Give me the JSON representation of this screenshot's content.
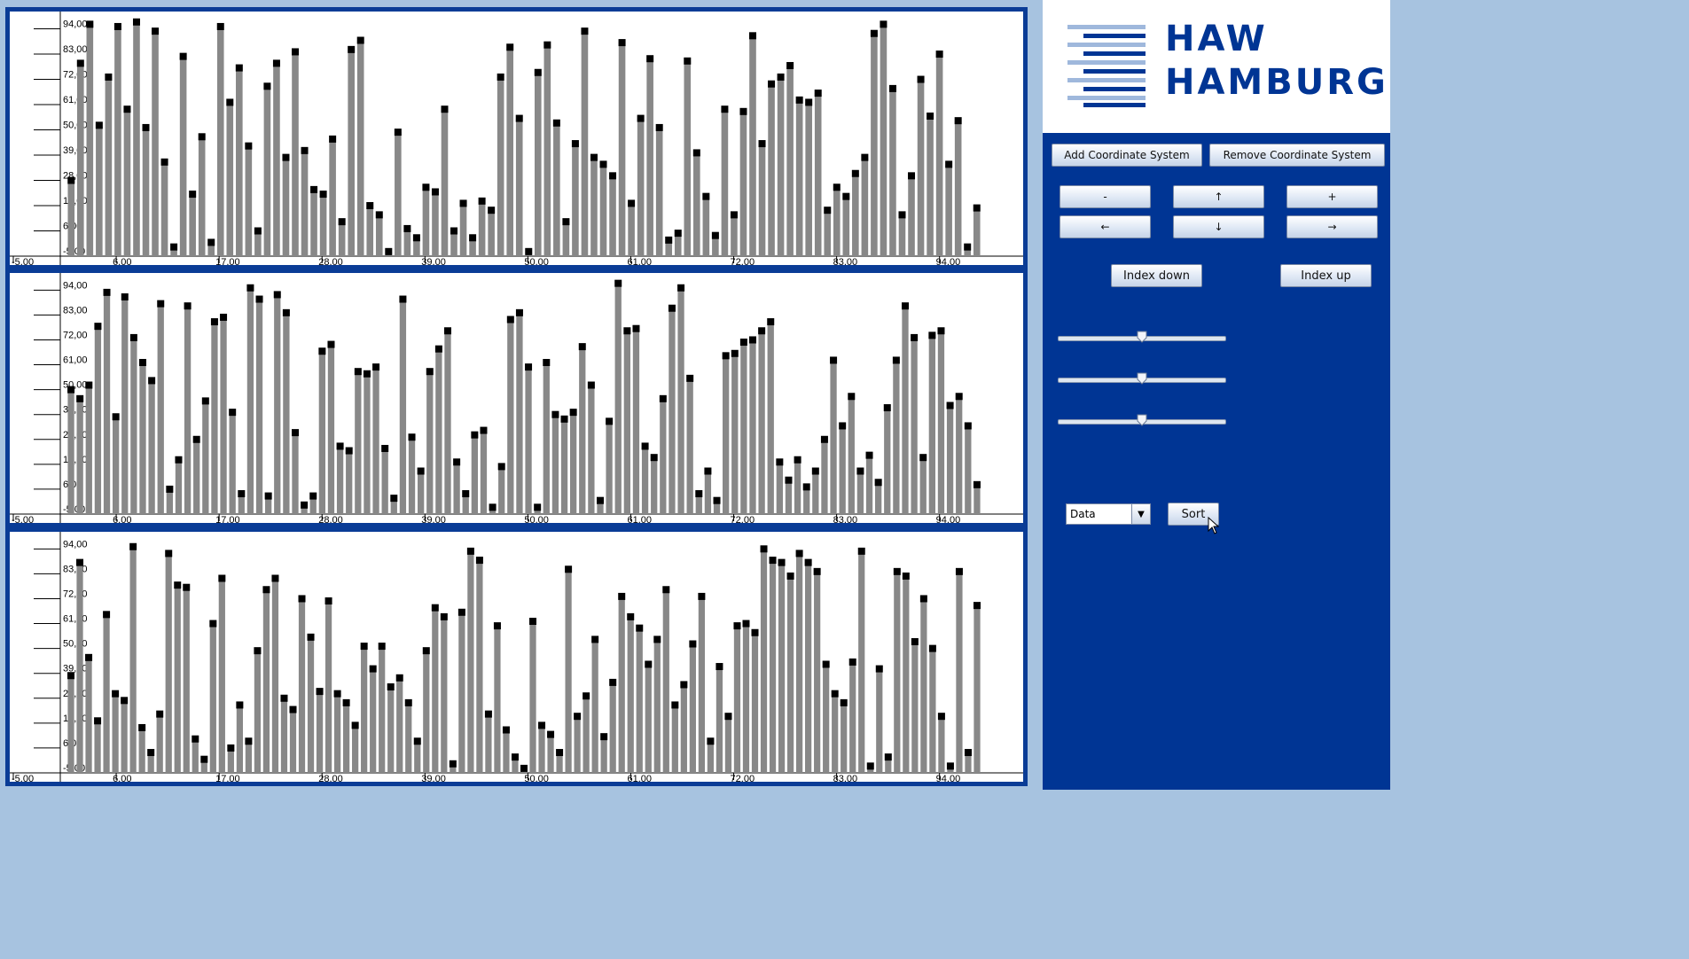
{
  "colors": {
    "bar": "#888888",
    "marker": "#000000",
    "frame": "#0a3c96",
    "panel": "#003594",
    "logo": "#003594",
    "logo_light": "#9fb8dc"
  },
  "logo": {
    "line1": "HAW",
    "line2": "HAMBURG"
  },
  "toolbar": {
    "add_coordinate_system": "Add Coordinate System",
    "remove_coordinate_system": "Remove Coordinate System",
    "zoom_out": "-",
    "zoom_in": "+",
    "move_up": "↑",
    "move_down": "↓",
    "move_left": "←",
    "move_right": "→",
    "index_down": "Index down",
    "index_up": "Index up",
    "sort": "Sort"
  },
  "sliders": [
    {
      "name": "slider-1",
      "value": 0.5
    },
    {
      "name": "slider-2",
      "value": 0.5
    },
    {
      "name": "slider-3",
      "value": 0.5
    }
  ],
  "sort_combo": {
    "selected": "Data"
  },
  "chart_data": [
    {
      "type": "bar",
      "ylim": [
        -5,
        100
      ],
      "xlim": [
        -5,
        100
      ],
      "y_ticks": [
        "-5,00",
        "6,00",
        "17,00",
        "28,00",
        "39,00",
        "50,00",
        "61,00",
        "72,00",
        "83,00",
        "94,00"
      ],
      "x_ticks": [
        "-5,00",
        "6,00",
        "17,00",
        "28,00",
        "39,00",
        "50,00",
        "61,00",
        "72,00",
        "83,00",
        "94,00"
      ],
      "values": [
        28,
        79,
        96,
        52,
        73,
        95,
        59,
        97,
        51,
        93,
        36,
        -1,
        82,
        22,
        47,
        1,
        95,
        62,
        77,
        43,
        6,
        69,
        79,
        38,
        84,
        41,
        24,
        22,
        46,
        10,
        85,
        89,
        17,
        13,
        -3,
        49,
        7,
        3,
        25,
        23,
        59,
        6,
        18,
        3,
        19,
        15,
        73,
        86,
        55,
        -3,
        75,
        87,
        53,
        10,
        44,
        93,
        38,
        35,
        30,
        88,
        18,
        55,
        81,
        51,
        2,
        5,
        80,
        40,
        21,
        4,
        59,
        13,
        58,
        91,
        44,
        70,
        73,
        78,
        63,
        62,
        66,
        15,
        25,
        21,
        31,
        38,
        92,
        96,
        68,
        13,
        30,
        72,
        56,
        83,
        35,
        54,
        -1,
        16
      ]
    },
    {
      "type": "bar",
      "ylim": [
        -5,
        100
      ],
      "xlim": [
        -5,
        100
      ],
      "y_ticks": [
        "-5,00",
        "6,00",
        "17,00",
        "28,00",
        "39,00",
        "50,00",
        "61,00",
        "72,00",
        "83,00",
        "94,00"
      ],
      "x_ticks": [
        "-5,00",
        "6,00",
        "17,00",
        "28,00",
        "39,00",
        "50,00",
        "61,00",
        "72,00",
        "83,00",
        "94,00"
      ],
      "values": [
        50,
        46,
        52,
        78,
        93,
        38,
        91,
        73,
        62,
        54,
        88,
        6,
        19,
        87,
        28,
        45,
        80,
        82,
        40,
        4,
        95,
        90,
        3,
        92,
        84,
        31,
        -1,
        3,
        67,
        70,
        25,
        23,
        58,
        57,
        60,
        24,
        2,
        90,
        29,
        14,
        58,
        68,
        76,
        18,
        4,
        30,
        32,
        -2,
        16,
        81,
        84,
        60,
        -2,
        62,
        39,
        37,
        40,
        69,
        52,
        1,
        36,
        97,
        76,
        77,
        25,
        20,
        46,
        86,
        95,
        55,
        4,
        14,
        1,
        65,
        66,
        71,
        72,
        76,
        80,
        18,
        10,
        19,
        7,
        14,
        28,
        63,
        34,
        47,
        14,
        21,
        9,
        42,
        63,
        87,
        73,
        20,
        74,
        76,
        43,
        47,
        34,
        8
      ]
    },
    {
      "type": "bar",
      "ylim": [
        -5,
        100
      ],
      "xlim": [
        -5,
        100
      ],
      "y_ticks": [
        "-5,00",
        "6,00",
        "17,00",
        "28,00",
        "39,00",
        "50,00",
        "61,00",
        "72,00",
        "83,00",
        "94,00"
      ],
      "x_ticks": [
        "-5,00",
        "6,00",
        "17,00",
        "28,00",
        "39,00",
        "50,00",
        "61,00",
        "72,00",
        "83,00",
        "94,00"
      ],
      "values": [
        38,
        88,
        46,
        18,
        65,
        30,
        27,
        95,
        15,
        4,
        21,
        92,
        78,
        77,
        10,
        1,
        61,
        81,
        6,
        25,
        9,
        49,
        76,
        81,
        28,
        23,
        72,
        55,
        31,
        71,
        30,
        26,
        16,
        51,
        41,
        51,
        33,
        37,
        26,
        9,
        49,
        68,
        64,
        -1,
        66,
        93,
        89,
        21,
        60,
        14,
        2,
        -3,
        62,
        16,
        12,
        4,
        85,
        20,
        29,
        54,
        11,
        35,
        73,
        64,
        59,
        43,
        54,
        76,
        25,
        34,
        52,
        73,
        9,
        42,
        20,
        60,
        61,
        57,
        94,
        89,
        88,
        82,
        92,
        88,
        84,
        43,
        30,
        26,
        44,
        93,
        -2,
        41,
        2,
        84,
        82,
        53,
        72,
        50,
        20,
        -2,
        84,
        4,
        69
      ]
    }
  ]
}
